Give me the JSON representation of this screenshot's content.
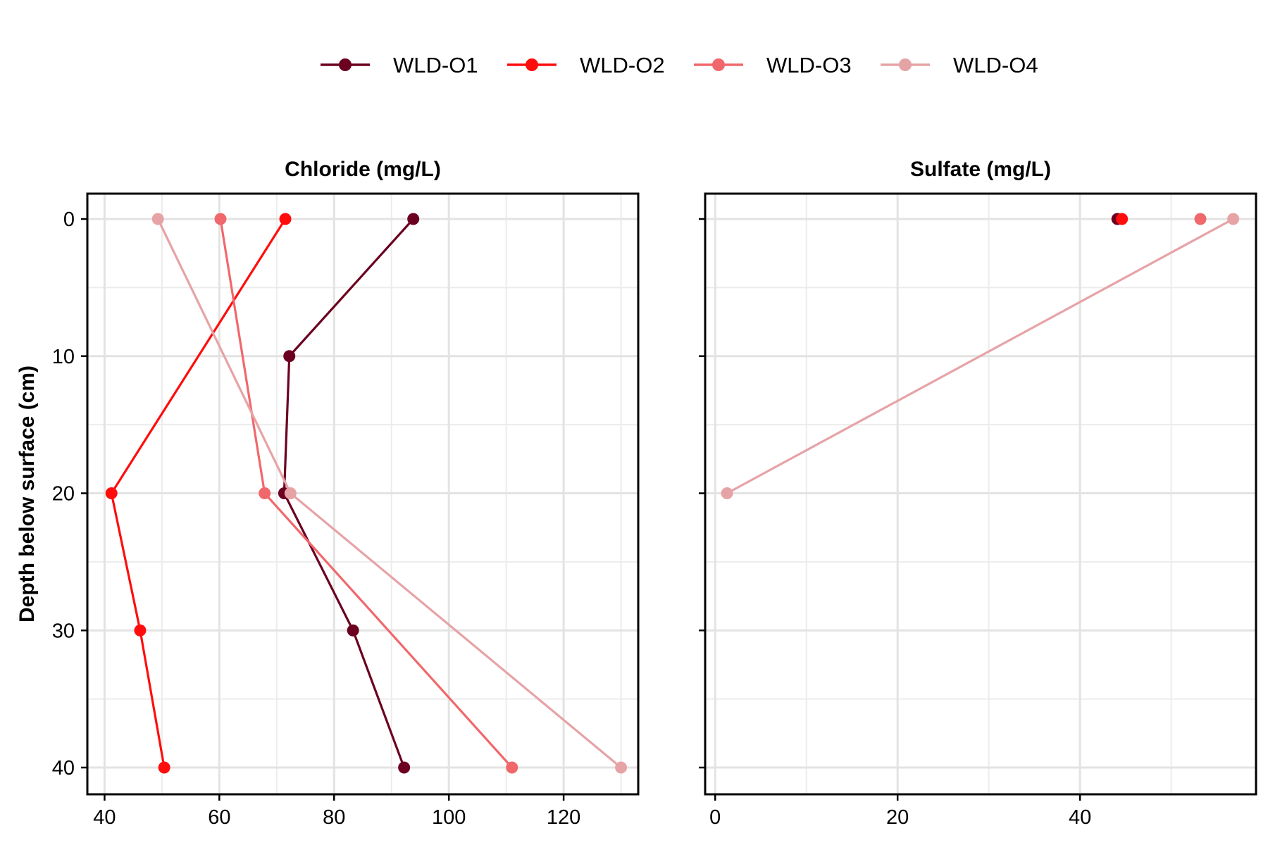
{
  "chart_data": {
    "type": "line",
    "legend": {
      "position": "top",
      "entries": [
        {
          "name": "WLD-O1",
          "color": "#6b0020"
        },
        {
          "name": "WLD-O2",
          "color": "#ff0d0d"
        },
        {
          "name": "WLD-O3",
          "color": "#f0686c"
        },
        {
          "name": "WLD-O4",
          "color": "#e6a3a6"
        }
      ]
    },
    "ylabel": "Depth below surface (cm)",
    "y_reversed": true,
    "ylim": [
      0,
      40
    ],
    "yticks": [
      0,
      10,
      20,
      30,
      40
    ],
    "grid": true,
    "panels": [
      {
        "title": "Chloride (mg/L)",
        "xlim": [
          37,
          133
        ],
        "xticks": [
          40,
          60,
          80,
          100,
          120
        ],
        "series": [
          {
            "name": "WLD-O1",
            "color": "#6b0020",
            "points": [
              {
                "x": 93.8,
                "y": 0
              },
              {
                "x": 72.2,
                "y": 10
              },
              {
                "x": 71.3,
                "y": 20
              },
              {
                "x": 83.3,
                "y": 30
              },
              {
                "x": 92.2,
                "y": 40
              }
            ]
          },
          {
            "name": "WLD-O2",
            "color": "#ff0d0d",
            "points": [
              {
                "x": 71.5,
                "y": 0
              },
              {
                "x": 41.2,
                "y": 20
              },
              {
                "x": 46.2,
                "y": 30
              },
              {
                "x": 50.4,
                "y": 40
              }
            ]
          },
          {
            "name": "WLD-O3",
            "color": "#f0686c",
            "points": [
              {
                "x": 60.2,
                "y": 0
              },
              {
                "x": 67.9,
                "y": 20
              },
              {
                "x": 111.0,
                "y": 40
              }
            ]
          },
          {
            "name": "WLD-O4",
            "color": "#e6a3a6",
            "points": [
              {
                "x": 49.3,
                "y": 0
              },
              {
                "x": 72.4,
                "y": 20
              },
              {
                "x": 130.0,
                "y": 40
              }
            ]
          }
        ]
      },
      {
        "title": "Sulfate (mg/L)",
        "xlim": [
          -1.1,
          59.3
        ],
        "xticks": [
          0,
          20,
          40
        ],
        "series": [
          {
            "name": "WLD-O1",
            "color": "#6b0020",
            "points": [
              {
                "x": 44.1,
                "y": 0
              }
            ]
          },
          {
            "name": "WLD-O2",
            "color": "#ff0d0d",
            "points": [
              {
                "x": 44.6,
                "y": 0
              }
            ]
          },
          {
            "name": "WLD-O3",
            "color": "#f0686c",
            "points": [
              {
                "x": 53.2,
                "y": 0
              }
            ]
          },
          {
            "name": "WLD-O4",
            "color": "#e6a3a6",
            "points": [
              {
                "x": 56.8,
                "y": 0
              },
              {
                "x": 1.3,
                "y": 20
              }
            ]
          }
        ]
      }
    ]
  }
}
